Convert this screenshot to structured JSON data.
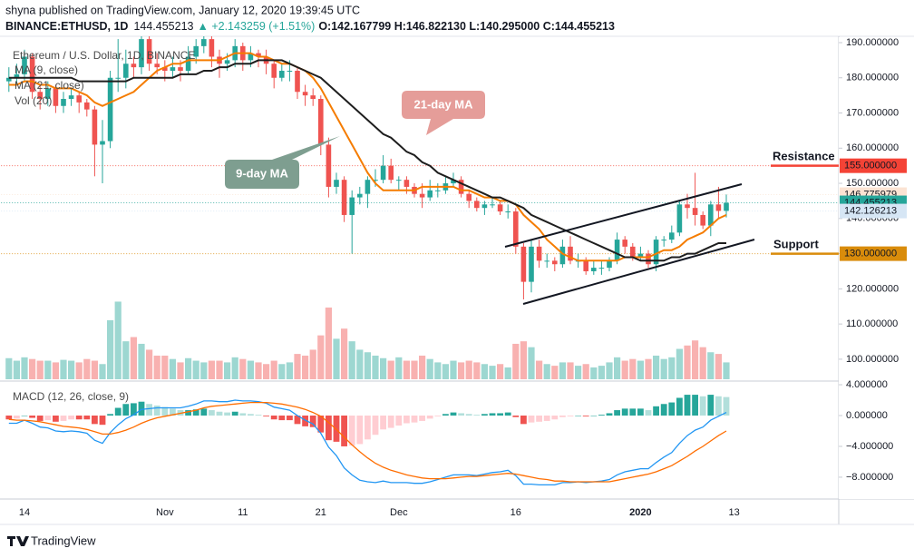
{
  "header": {
    "publisher": "shyna published on TradingView.com, January 12, 2020 19:39:45 UTC",
    "symbol": "BINANCE:ETHUSD, 1D",
    "last": "144.455213",
    "change": "▲ +2.143259 (+1.51%)",
    "ohlc": "O:142.167799 H:146.822130 L:140.295000 C:144.455213"
  },
  "footer": {
    "brand": "TradingView"
  },
  "chart_data": [
    {
      "type": "candlestick",
      "title": "Ethereum / U.S. Dollar, 1D, BINANCE",
      "categories": [
        null,
        null,
        "14",
        null,
        null,
        null,
        null,
        null,
        null,
        null,
        null,
        null,
        null,
        null,
        null,
        null,
        null,
        null,
        null,
        null,
        "Nov",
        null,
        null,
        null,
        null,
        null,
        null,
        null,
        null,
        null,
        "11",
        null,
        null,
        null,
        null,
        null,
        null,
        null,
        null,
        null,
        "21",
        null,
        null,
        null,
        null,
        null,
        null,
        null,
        null,
        null,
        "Dec",
        null,
        null,
        null,
        null,
        null,
        null,
        null,
        null,
        null,
        null,
        null,
        null,
        null,
        null,
        "16",
        null,
        null,
        null,
        null,
        null,
        null,
        null,
        null,
        null,
        null,
        null,
        null,
        null,
        null,
        null,
        "2020",
        null,
        null,
        null,
        null,
        null,
        null,
        null,
        null,
        null,
        null,
        null,
        "13"
      ],
      "xlim": [
        -1,
        106
      ],
      "open": [
        179,
        180,
        181,
        186,
        176,
        174,
        177,
        172,
        174,
        175,
        173,
        171,
        161,
        162,
        180,
        180,
        184,
        183,
        191,
        184,
        183,
        182,
        183,
        182,
        186,
        189,
        191,
        186,
        184,
        185,
        189,
        185,
        187,
        186,
        184,
        180,
        182,
        182,
        176,
        175,
        174,
        161,
        149,
        151,
        141,
        146,
        147,
        151,
        151,
        155,
        151,
        151,
        149,
        147,
        146,
        148,
        148,
        150,
        151,
        147,
        145,
        143,
        144,
        144,
        142,
        142,
        132,
        122,
        132,
        128,
        128,
        127,
        132,
        128,
        128,
        125,
        126,
        126,
        128,
        134,
        132,
        129,
        130,
        127,
        134,
        134,
        136,
        144,
        143,
        141,
        138,
        144,
        142.167799,
        null
      ],
      "high": [
        183,
        184,
        188,
        187,
        178,
        179,
        178,
        176,
        177,
        176,
        174,
        172,
        168,
        182,
        191,
        188,
        186,
        193,
        192,
        187,
        185,
        186,
        185,
        189,
        191,
        193,
        192,
        188,
        187,
        191,
        190,
        189,
        188,
        188,
        185,
        184,
        185,
        183,
        178,
        177,
        175,
        163,
        153,
        152,
        148,
        149,
        152,
        154,
        158,
        157,
        152,
        152,
        150,
        150,
        151,
        150,
        152,
        153,
        152,
        148,
        146,
        145,
        146,
        145,
        144,
        143,
        133,
        134,
        134,
        130,
        129,
        134,
        135,
        130,
        129,
        128,
        128,
        129,
        136,
        135,
        133,
        132,
        131,
        135,
        135,
        138,
        145,
        147,
        153,
        142,
        145,
        149,
        146.82213,
        null
      ],
      "low": [
        176,
        178,
        179,
        174,
        171,
        172,
        170,
        170,
        172,
        170,
        169,
        152,
        150,
        160,
        176,
        177,
        180,
        181,
        182,
        181,
        179,
        180,
        179,
        181,
        184,
        187,
        183,
        180,
        182,
        183,
        182,
        183,
        183,
        181,
        177,
        179,
        179,
        174,
        172,
        172,
        158,
        146,
        147,
        139,
        130,
        144,
        143,
        149,
        150,
        150,
        148,
        147,
        146,
        143,
        145,
        146,
        147,
        149,
        146,
        143,
        142,
        141,
        143,
        141,
        140,
        130,
        117,
        119,
        126,
        126,
        125,
        126,
        127,
        126,
        124,
        124,
        124,
        125,
        127,
        130,
        128,
        128,
        126,
        125,
        132,
        133,
        135,
        140,
        138,
        137,
        135,
        140,
        140.295,
        null
      ],
      "close": [
        180,
        181,
        186,
        176,
        174,
        177,
        172,
        174,
        175,
        173,
        171,
        161,
        162,
        180,
        180,
        184,
        183,
        191,
        184,
        183,
        182,
        183,
        182,
        186,
        189,
        191,
        186,
        184,
        185,
        189,
        185,
        187,
        186,
        184,
        180,
        182,
        182,
        176,
        175,
        174,
        161,
        149,
        151,
        141,
        146,
        147,
        151,
        151,
        155,
        151,
        151,
        149,
        147,
        146,
        148,
        148,
        150,
        151,
        147,
        145,
        143,
        144,
        144,
        142,
        142,
        132,
        122,
        132,
        128,
        128,
        127,
        132,
        128,
        128,
        125,
        126,
        126,
        128,
        134,
        132,
        129,
        130,
        127,
        134,
        134,
        136,
        144,
        143,
        141,
        138,
        144,
        142.167799,
        144.455213,
        null
      ],
      "up_color": "#26a69a",
      "down_color": "#ef5350",
      "ylim": [
        94.3,
        191.8
      ],
      "yticks": [
        {
          "value": 190,
          "label": "190.000000"
        },
        {
          "value": 180,
          "label": "180.000000"
        },
        {
          "value": 170,
          "label": "170.000000"
        },
        {
          "value": 160,
          "label": "160.000000"
        },
        {
          "value": 150,
          "label": "150.000000"
        },
        {
          "value": 140,
          "label": "140.000000"
        },
        {
          "value": 130,
          "label": "130.000000"
        },
        {
          "value": 120,
          "label": "120.000000"
        },
        {
          "value": 110,
          "label": "110.000000"
        },
        {
          "value": 100,
          "label": "100.000000"
        }
      ],
      "series": [
        {
          "name": "MA (9, close)",
          "color": "#f57c00",
          "values": [
            178,
            178,
            179,
            179,
            178,
            178,
            177,
            177,
            177,
            176,
            175,
            173,
            172,
            173,
            174,
            175,
            176,
            178,
            180,
            182,
            183,
            184,
            184,
            185,
            185,
            185,
            185,
            185,
            186,
            187,
            187,
            187,
            186,
            186,
            185,
            184,
            184,
            183,
            182,
            180,
            177,
            173,
            169,
            165,
            161,
            157,
            153,
            150,
            148,
            148,
            148,
            148,
            148,
            149,
            149,
            149,
            149,
            149,
            148,
            148,
            147,
            146,
            146,
            145,
            145,
            144,
            141,
            139,
            137,
            134,
            132,
            130,
            129,
            128,
            128,
            128,
            128,
            128,
            128,
            129,
            129,
            129,
            129,
            130,
            131,
            131,
            132,
            134,
            135,
            136,
            138,
            140,
            141,
            null
          ]
        },
        {
          "name": "MA (21, close)",
          "color": "#1e1e1e",
          "values": [
            180,
            180,
            180,
            180,
            180,
            180,
            180,
            180,
            180,
            179,
            179,
            179,
            179,
            179,
            179,
            179,
            180,
            180,
            180,
            180,
            180,
            180,
            181,
            181,
            181,
            182,
            182,
            183,
            183,
            184,
            184,
            184,
            185,
            185,
            185,
            185,
            184,
            183,
            182,
            181,
            180,
            178,
            176,
            174,
            172,
            170,
            168,
            166,
            164,
            163,
            161,
            159,
            158,
            156,
            155,
            153,
            152,
            151,
            150,
            149,
            148,
            147,
            146,
            146,
            145,
            144,
            143,
            141,
            140,
            139,
            138,
            137,
            136,
            135,
            134,
            133,
            132,
            131,
            130,
            129,
            129,
            128,
            128,
            128,
            128,
            129,
            129,
            130,
            130,
            131,
            132,
            133,
            133,
            null
          ]
        }
      ],
      "volume": {
        "name": "Vol (20)",
        "ylim": [
          0,
          100
        ],
        "values": [
          25,
          22,
          26,
          24,
          22,
          22,
          20,
          23,
          22,
          20,
          24,
          22,
          18,
          70,
          92,
          45,
          50,
          42,
          35,
          28,
          28,
          24,
          20,
          25,
          22,
          20,
          22,
          22,
          20,
          26,
          24,
          22,
          20,
          18,
          22,
          18,
          20,
          30,
          28,
          35,
          52,
          85,
          48,
          60,
          45,
          35,
          32,
          28,
          25,
          22,
          26,
          22,
          22,
          28,
          24,
          20,
          18,
          22,
          20,
          22,
          20,
          18,
          16,
          18,
          14,
          42,
          45,
          38,
          22,
          18,
          16,
          20,
          20,
          16,
          18,
          14,
          16,
          20,
          26,
          22,
          24,
          22,
          24,
          28,
          24,
          26,
          36,
          40,
          46,
          38,
          32,
          30,
          20,
          null
        ]
      },
      "price_lines": [
        {
          "value": 155,
          "label": "155.000000",
          "color": "#f44336",
          "label_color": "#ffffff"
        },
        {
          "value": 146.775979,
          "label": "146.775979",
          "color": "#fbe3d3",
          "label_color": "#131722"
        },
        {
          "value": 144.455213,
          "label": "144.455213",
          "color": "#26a69a",
          "label_color": "#ffffff"
        },
        {
          "value": 142.126213,
          "label": "142.126213",
          "color": "#d6e6f5",
          "label_color": "#131722"
        },
        {
          "value": 130,
          "label": "130.000000",
          "color": "#d98c0b",
          "label_color": "#ffffff"
        }
      ],
      "annotations": [
        {
          "text": "21-day MA",
          "color": "#e59d99"
        },
        {
          "text": "9-day MA",
          "color": "#7e9e90"
        },
        {
          "text": "Resistance",
          "color": "#b71c1c"
        },
        {
          "text": "Support",
          "color": "#8e1e6e"
        }
      ]
    },
    {
      "type": "macd",
      "title": "MACD (12, 26, close, 9)",
      "xlim": [
        -1,
        106
      ],
      "ylim": [
        -10.6,
        4.24
      ],
      "yticks": [
        {
          "value": 4,
          "label": "4.000000"
        },
        {
          "value": 0,
          "label": "0.000000"
        },
        {
          "value": -4,
          "label": "−4.000000"
        },
        {
          "value": -8,
          "label": "−8.000000"
        }
      ],
      "histogram": {
        "colors": [
          "#26a69a",
          "#b2dfdb",
          "#ef5350",
          "#ffcdd2"
        ],
        "values": [
          -0.5,
          -0.4,
          0.0,
          -0.3,
          -0.7,
          -0.6,
          -0.8,
          -0.7,
          -0.5,
          -0.5,
          -0.5,
          -1.1,
          -1.2,
          0.2,
          1.0,
          1.5,
          1.6,
          1.8,
          1.5,
          1.3,
          1.1,
          0.9,
          0.7,
          0.7,
          0.8,
          0.9,
          0.7,
          0.5,
          0.4,
          0.5,
          0.3,
          0.2,
          0.1,
          -0.1,
          -0.5,
          -0.6,
          -0.6,
          -1.1,
          -1.4,
          -1.5,
          -2.2,
          -3.2,
          -3.4,
          -4.0,
          -3.9,
          -3.7,
          -3.1,
          -2.5,
          -1.8,
          -1.6,
          -1.3,
          -1.0,
          -0.9,
          -0.7,
          -0.4,
          -0.1,
          0.2,
          0.4,
          0.3,
          0.2,
          0.1,
          0.2,
          0.3,
          0.3,
          0.4,
          -0.2,
          -1.1,
          -0.9,
          -0.8,
          -0.7,
          -0.5,
          -0.2,
          -0.1,
          0.0,
          -0.1,
          0.0,
          0.1,
          0.3,
          0.7,
          0.9,
          0.9,
          0.9,
          0.7,
          1.2,
          1.5,
          1.7,
          2.3,
          2.7,
          2.7,
          2.5,
          2.7,
          2.5,
          2.4,
          null
        ]
      },
      "series": [
        {
          "color": "#2196f3",
          "values": [
            -1.0,
            -1.0,
            -0.6,
            -1.0,
            -1.5,
            -1.6,
            -2.0,
            -2.1,
            -2.0,
            -2.1,
            -2.3,
            -3.2,
            -3.6,
            -2.2,
            -1.2,
            -0.4,
            0.1,
            0.8,
            0.9,
            1.0,
            1.0,
            1.0,
            1.0,
            1.2,
            1.5,
            1.9,
            1.9,
            1.8,
            1.8,
            2.0,
            1.9,
            1.9,
            1.8,
            1.6,
            1.1,
            0.9,
            0.7,
            0.0,
            -0.6,
            -1.1,
            -2.3,
            -4.1,
            -5.2,
            -6.8,
            -7.7,
            -8.4,
            -8.6,
            -8.7,
            -8.5,
            -8.7,
            -8.7,
            -8.7,
            -8.8,
            -8.8,
            -8.6,
            -8.3,
            -8.0,
            -7.7,
            -7.7,
            -7.7,
            -7.8,
            -7.6,
            -7.4,
            -7.3,
            -7.1,
            -7.8,
            -8.9,
            -8.9,
            -9.0,
            -9.0,
            -9.0,
            -8.7,
            -8.7,
            -8.6,
            -8.7,
            -8.6,
            -8.5,
            -8.3,
            -7.7,
            -7.3,
            -7.1,
            -6.9,
            -6.9,
            -6.1,
            -5.4,
            -4.8,
            -3.6,
            -2.6,
            -1.9,
            -1.5,
            -0.6,
            -0.1,
            0.4,
            null
          ]
        },
        {
          "color": "#ff6d00",
          "values": [
            -0.5,
            -0.6,
            -0.6,
            -0.7,
            -0.8,
            -1.0,
            -1.2,
            -1.4,
            -1.5,
            -1.6,
            -1.8,
            -2.1,
            -2.4,
            -2.4,
            -2.2,
            -1.9,
            -1.5,
            -1.0,
            -0.6,
            -0.3,
            -0.1,
            0.1,
            0.3,
            0.5,
            0.7,
            1.0,
            1.2,
            1.3,
            1.4,
            1.5,
            1.6,
            1.7,
            1.7,
            1.7,
            1.6,
            1.5,
            1.3,
            1.1,
            0.8,
            0.4,
            -0.1,
            -0.9,
            -1.8,
            -2.8,
            -3.8,
            -4.7,
            -5.5,
            -6.2,
            -6.7,
            -7.1,
            -7.4,
            -7.7,
            -7.9,
            -8.1,
            -8.2,
            -8.2,
            -8.2,
            -8.1,
            -8.0,
            -7.9,
            -7.9,
            -7.8,
            -7.7,
            -7.6,
            -7.5,
            -7.6,
            -7.8,
            -8.0,
            -8.2,
            -8.3,
            -8.5,
            -8.5,
            -8.6,
            -8.6,
            -8.6,
            -8.6,
            -8.6,
            -8.6,
            -8.4,
            -8.2,
            -8.0,
            -7.8,
            -7.6,
            -7.3,
            -6.9,
            -6.5,
            -5.9,
            -5.3,
            -4.6,
            -4.0,
            -3.3,
            -2.6,
            -2.0,
            null
          ]
        }
      ]
    }
  ]
}
